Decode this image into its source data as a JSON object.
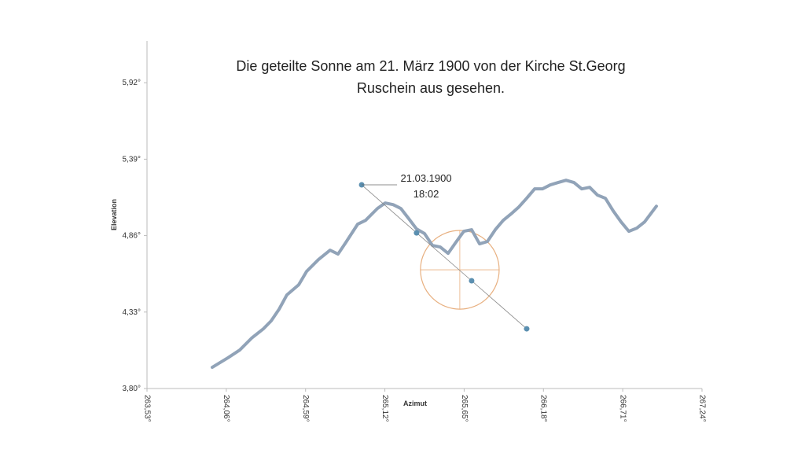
{
  "chart_data": {
    "type": "scatter",
    "title": [
      "Die geteilte Sonne am 21. März 1900 von der Kirche St.Georg",
      "Ruschein aus gesehen."
    ],
    "x_label": "Azimut",
    "y_label": "Elevation",
    "xlim": [
      263.53,
      267.24
    ],
    "xticks": [
      {
        "value": 263.53,
        "label": "263,53°"
      },
      {
        "value": 264.06,
        "label": "264,06°"
      },
      {
        "value": 264.59,
        "label": "264,59°"
      },
      {
        "value": 265.12,
        "label": "265,12°"
      },
      {
        "value": 265.65,
        "label": "265,65°"
      },
      {
        "value": 266.18,
        "label": "266,18°"
      },
      {
        "value": 266.71,
        "label": "266,71°"
      },
      {
        "value": 267.24,
        "label": "267,24°"
      }
    ],
    "ylim": [
      3.8,
      6.21
    ],
    "yticks": [
      {
        "value": 3.8,
        "label": "3,80°"
      },
      {
        "value": 4.33,
        "label": "4,33°"
      },
      {
        "value": 4.86,
        "label": "4,86°"
      },
      {
        "value": 5.39,
        "label": "5,39°"
      },
      {
        "value": 5.92,
        "label": "5,92°"
      }
    ],
    "series": [
      {
        "color": "#91a3b8",
        "line": true,
        "markers": false,
        "x": [
          263.966,
          264.071,
          264.15,
          264.229,
          264.308,
          264.36,
          264.413,
          264.465,
          264.544,
          264.597,
          264.676,
          264.754,
          264.807,
          264.86,
          264.938,
          264.991,
          265.07,
          265.122,
          265.175,
          265.227,
          265.28,
          265.332,
          265.385,
          265.438,
          265.49,
          265.543,
          265.595,
          265.648,
          265.7,
          265.753,
          265.805,
          265.858,
          265.911,
          265.963,
          266.016,
          266.068,
          266.121,
          266.173,
          266.226,
          266.278,
          266.331,
          266.384,
          266.436,
          266.489,
          266.541,
          266.594,
          266.646,
          266.699,
          266.751,
          266.804,
          266.856,
          266.935
        ],
        "values": [
          3.947,
          4.013,
          4.067,
          4.149,
          4.214,
          4.269,
          4.35,
          4.449,
          4.519,
          4.612,
          4.694,
          4.759,
          4.732,
          4.814,
          4.939,
          4.966,
          5.048,
          5.086,
          5.075,
          5.048,
          4.977,
          4.906,
          4.874,
          4.792,
          4.781,
          4.737,
          4.814,
          4.89,
          4.901,
          4.803,
          4.819,
          4.901,
          4.966,
          5.01,
          5.059,
          5.119,
          5.184,
          5.184,
          5.212,
          5.228,
          5.244,
          5.228,
          5.184,
          5.195,
          5.141,
          5.119,
          5.032,
          4.955,
          4.89,
          4.912,
          4.955,
          5.064
        ]
      },
      {
        "color": "#5b8fb0",
        "line": true,
        "markers": true,
        "x": [
          264.965,
          265.332,
          265.7,
          266.068
        ],
        "values": [
          5.212,
          4.879,
          4.547,
          4.214
        ]
      }
    ],
    "sun": {
      "x": 265.621,
      "y": 4.623,
      "radius": 0.263,
      "color": "#e8b080"
    },
    "annotation": {
      "lines": [
        "21.03.1900",
        "18:02"
      ],
      "x": 264.965,
      "y": 5.212
    }
  }
}
